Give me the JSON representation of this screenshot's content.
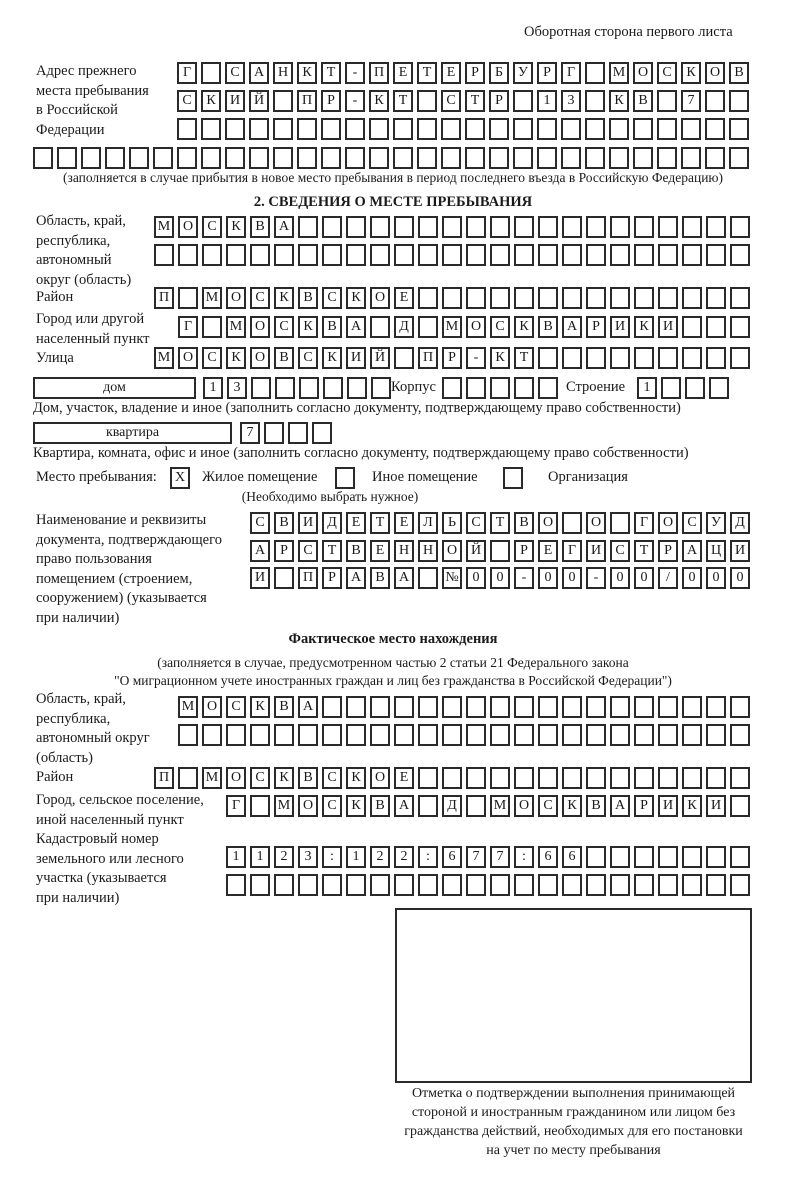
{
  "header": {
    "page_side": "Оборотная сторона первого листа"
  },
  "prev_address": {
    "label": "Адрес прежнего\nместа пребывания\nв Российской\nФедерации",
    "rows": [
      [
        "Г",
        "",
        "С",
        "А",
        "Н",
        "К",
        "Т",
        "-",
        "П",
        "Е",
        "Т",
        "Е",
        "Р",
        "Б",
        "У",
        "Р",
        "Г",
        "",
        "М",
        "О",
        "С",
        "К",
        "О",
        "В"
      ],
      [
        "С",
        "К",
        "И",
        "Й",
        "",
        "П",
        "Р",
        "-",
        "К",
        "Т",
        "",
        "С",
        "Т",
        "Р",
        "",
        "1",
        "3",
        "",
        "К",
        "В",
        "",
        "7",
        "",
        ""
      ],
      [
        "",
        "",
        "",
        "",
        "",
        "",
        "",
        "",
        "",
        "",
        "",
        "",
        "",
        "",
        "",
        "",
        "",
        "",
        "",
        "",
        "",
        "",
        "",
        ""
      ],
      [
        "",
        "",
        "",
        "",
        "",
        "",
        "",
        "",
        "",
        "",
        "",
        "",
        "",
        "",
        "",
        "",
        "",
        "",
        "",
        "",
        "",
        "",
        "",
        "",
        "",
        "",
        "",
        "",
        "",
        ""
      ]
    ],
    "note": "(заполняется в случае прибытия в новое место пребывания в период последнего въезда в Российскую Федерацию)"
  },
  "section2": {
    "title": "2. СВЕДЕНИЯ О МЕСТЕ ПРЕБЫВАНИЯ",
    "region_label": "Область, край,\nреспублика,\nавтономный\nокруг (область)",
    "region_rows": [
      [
        "М",
        "О",
        "С",
        "К",
        "В",
        "А",
        "",
        "",
        "",
        "",
        "",
        "",
        "",
        "",
        "",
        "",
        "",
        "",
        "",
        "",
        "",
        "",
        "",
        "",
        ""
      ],
      [
        "",
        "",
        "",
        "",
        "",
        "",
        "",
        "",
        "",
        "",
        "",
        "",
        "",
        "",
        "",
        "",
        "",
        "",
        "",
        "",
        "",
        "",
        "",
        "",
        ""
      ]
    ],
    "district_label": "Район",
    "district": [
      "П",
      "",
      "М",
      "О",
      "С",
      "К",
      "В",
      "С",
      "К",
      "О",
      "Е",
      "",
      "",
      "",
      "",
      "",
      "",
      "",
      "",
      "",
      "",
      "",
      "",
      "",
      ""
    ],
    "city_label": "Город или другой\nнаселенный пункт",
    "city": [
      "Г",
      "",
      "М",
      "О",
      "С",
      "К",
      "В",
      "А",
      "",
      "Д",
      "",
      "М",
      "О",
      "С",
      "К",
      "В",
      "А",
      "Р",
      "И",
      "К",
      "И",
      "",
      "",
      ""
    ],
    "street_label": "Улица",
    "street": [
      "М",
      "О",
      "С",
      "К",
      "О",
      "В",
      "С",
      "К",
      "И",
      "Й",
      "",
      "П",
      "Р",
      "-",
      "К",
      "Т",
      "",
      "",
      "",
      "",
      "",
      "",
      "",
      "",
      ""
    ],
    "house_type": "дом",
    "house": [
      "1",
      "3",
      "",
      "",
      "",
      "",
      "",
      ""
    ],
    "corpus_label": "Корпус",
    "corpus": [
      "",
      "",
      "",
      "",
      ""
    ],
    "building_label": "Строение",
    "building": [
      "1",
      "",
      "",
      ""
    ],
    "house_note": "Дом, участок, владение и иное (заполнить согласно документу, подтверждающему право собственности)",
    "apt_type": "квартира",
    "apt": [
      "7",
      "",
      "",
      ""
    ],
    "apt_note": "Квартира, комната, офис и иное (заполнить согласно документу, подтверждающему право собственности)",
    "stay_label": "Место пребывания:",
    "stay_options": [
      {
        "label": "Жилое помещение",
        "mark": "X",
        "checked": true
      },
      {
        "label": "Иное помещение",
        "mark": "",
        "checked": false
      },
      {
        "label": "Организация",
        "mark": "",
        "checked": false
      }
    ],
    "stay_note": "(Необходимо выбрать нужное)",
    "doc_label": "Наименование и реквизиты\nдокумента, подтверждающего\nправо пользования\nпомещением (строением,\nсооружением) (указывается\nпри наличии)",
    "doc_rows": [
      [
        "С",
        "В",
        "И",
        "Д",
        "Е",
        "Т",
        "Е",
        "Л",
        "Ь",
        "С",
        "Т",
        "В",
        "О",
        "",
        "О",
        "",
        "Г",
        "О",
        "С",
        "У",
        "Д"
      ],
      [
        "А",
        "Р",
        "С",
        "Т",
        "В",
        "Е",
        "Н",
        "Н",
        "О",
        "Й",
        "",
        "Р",
        "Е",
        "Г",
        "И",
        "С",
        "Т",
        "Р",
        "А",
        "Ц",
        "И"
      ],
      [
        "И",
        "",
        "П",
        "Р",
        "А",
        "В",
        "А",
        "",
        "№",
        "0",
        "0",
        "-",
        "0",
        "0",
        "-",
        "0",
        "0",
        "/",
        "0",
        "0",
        "0"
      ]
    ]
  },
  "actual": {
    "title": "Фактическое место нахождения",
    "note1": "(заполняется в случае, предусмотренном частью 2 статьи 21 Федерального закона",
    "note2": "\"О миграционном учете иностранных граждан и лиц без гражданства в Российской Федерации\")",
    "region_label": "Область, край,\nреспублика,\nавтономный округ\n(область)",
    "region_rows": [
      [
        "М",
        "О",
        "С",
        "К",
        "В",
        "А",
        "",
        "",
        "",
        "",
        "",
        "",
        "",
        "",
        "",
        "",
        "",
        "",
        "",
        "",
        "",
        "",
        "",
        ""
      ],
      [
        "",
        "",
        "",
        "",
        "",
        "",
        "",
        "",
        "",
        "",
        "",
        "",
        "",
        "",
        "",
        "",
        "",
        "",
        "",
        "",
        "",
        "",
        "",
        ""
      ]
    ],
    "district_label": "Район",
    "district": [
      "П",
      "",
      "М",
      "О",
      "С",
      "К",
      "В",
      "С",
      "К",
      "О",
      "Е",
      "",
      "",
      "",
      "",
      "",
      "",
      "",
      "",
      "",
      "",
      "",
      "",
      "",
      ""
    ],
    "city_label": "Город, сельское поселение,\nиной населенный пункт",
    "city": [
      "Г",
      "",
      "М",
      "О",
      "С",
      "К",
      "В",
      "А",
      "",
      "Д",
      "",
      "М",
      "О",
      "С",
      "К",
      "В",
      "А",
      "Р",
      "И",
      "К",
      "И",
      ""
    ],
    "cadastral_label": "Кадастровый номер\nземельного или лесного\nучастка (указывается\nпри наличии)",
    "cadastral_rows": [
      [
        "1",
        "1",
        "2",
        "3",
        ":",
        "1",
        "2",
        "2",
        ":",
        "6",
        "7",
        "7",
        ":",
        "6",
        "6",
        "",
        "",
        "",
        "",
        "",
        "",
        ""
      ],
      [
        "",
        "",
        "",
        "",
        "",
        "",
        "",
        "",
        "",
        "",
        "",
        "",
        "",
        "",
        "",
        "",
        "",
        "",
        "",
        "",
        "",
        ""
      ]
    ]
  },
  "confirmation": {
    "caption": "Отметка о подтверждении выполнения принимающей\nстороной и иностранным гражданином или лицом без\nгражданства действий, необходимых для его постановки\nна учет по месту пребывания"
  }
}
